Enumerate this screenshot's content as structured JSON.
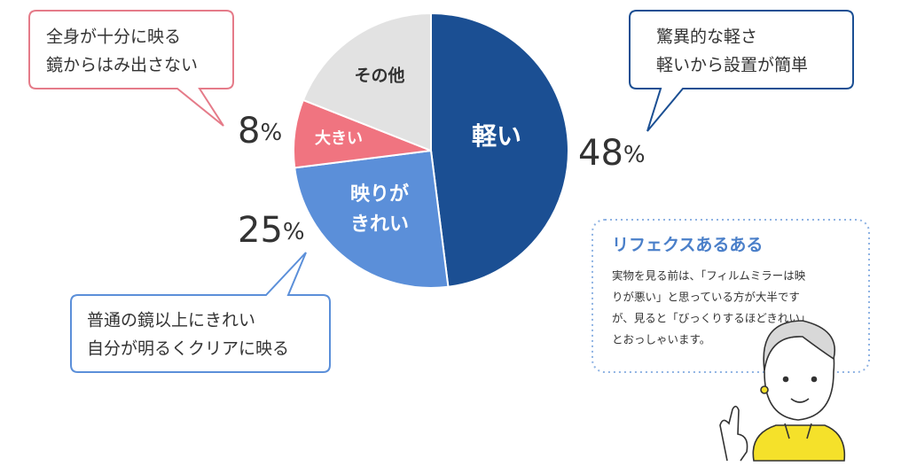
{
  "chart_data": {
    "type": "pie",
    "categories": [
      "軽い",
      "映りが\nきれい",
      "大きい",
      "その他"
    ],
    "values": [
      48,
      25,
      8,
      19
    ],
    "value_labels": [
      "48%",
      "25%",
      "8%",
      null
    ],
    "colors": [
      "#1b4f93",
      "#5b8fd9",
      "#f07480",
      "#e2e2e2"
    ],
    "label_colors": [
      "#ffffff",
      "#ffffff",
      "#ffffff",
      "#333333"
    ]
  },
  "callouts": [
    {
      "lines": [
        "全身が十分に映る",
        "鏡からはみ出さない"
      ]
    },
    {
      "lines": [
        "驚異的な軽さ",
        "軽いから設置が簡単"
      ]
    },
    {
      "lines": [
        "普通の鏡以上にきれい",
        "自分が明るくクリアに映る"
      ]
    }
  ],
  "info_box": {
    "title": "リフェクスあるある",
    "lines": [
      "実物を見る前は、「フィルムミラーは映",
      "りが悪い」と思っている方が大半です",
      "が、見ると「びっくりするほどきれい」",
      "とおっしゃいます。"
    ]
  }
}
